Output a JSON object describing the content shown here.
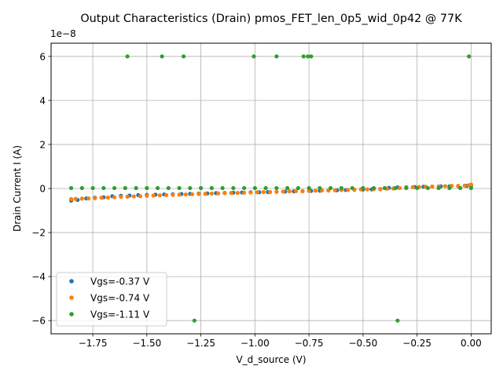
{
  "chart_data": {
    "type": "scatter",
    "title": "Output Characteristics (Drain) pmos_FET_len_0p5_wid_0p42 @ 77K",
    "xlabel": "V_d_source (V)",
    "ylabel": "Drain Current I (A)",
    "y_offset_text": "1e−8",
    "y_scale": 1e-08,
    "xlim": [
      -1.943,
      0.093
    ],
    "ylim": [
      -6.6,
      6.6
    ],
    "x_ticks": [
      -1.75,
      -1.5,
      -1.25,
      -1.0,
      -0.75,
      -0.5,
      -0.25,
      0.0
    ],
    "x_tick_labels": [
      "−1.75",
      "−1.50",
      "−1.25",
      "−1.00",
      "−0.75",
      "−0.50",
      "−0.25",
      "0.00"
    ],
    "y_ticks": [
      -6,
      -4,
      -2,
      0,
      2,
      4,
      6
    ],
    "y_tick_labels": [
      "−6",
      "−4",
      "−2",
      "0",
      "2",
      "4",
      "6"
    ],
    "grid": true,
    "legend_position": "lower-left",
    "series": [
      {
        "name": "Vgs=-0.37 V",
        "color": "#1f77b4",
        "x": [
          -1.85,
          -1.82,
          -1.78,
          -1.74,
          -1.7,
          -1.66,
          -1.62,
          -1.58,
          -1.54,
          -1.5,
          -1.46,
          -1.42,
          -1.38,
          -1.34,
          -1.3,
          -1.26,
          -1.22,
          -1.18,
          -1.14,
          -1.1,
          -1.06,
          -1.02,
          -0.98,
          -0.94,
          -0.9,
          -0.86,
          -0.82,
          -0.78,
          -0.74,
          -0.7,
          -0.66,
          -0.62,
          -0.58,
          -0.54,
          -0.5,
          -0.46,
          -0.42,
          -0.38,
          -0.34,
          -0.3,
          -0.26,
          -0.22,
          -0.18,
          -0.14,
          -0.1,
          -0.06,
          -0.02,
          0.0
        ],
        "y": [
          -0.55,
          -0.52,
          -0.45,
          -0.42,
          -0.4,
          -0.35,
          -0.33,
          -0.32,
          -0.3,
          -0.29,
          -0.28,
          -0.27,
          -0.26,
          -0.25,
          -0.24,
          -0.23,
          -0.22,
          -0.21,
          -0.2,
          -0.19,
          -0.18,
          -0.17,
          -0.17,
          -0.16,
          -0.15,
          -0.14,
          -0.13,
          -0.12,
          -0.11,
          -0.1,
          -0.09,
          -0.08,
          -0.07,
          -0.06,
          -0.05,
          -0.04,
          -0.03,
          0.03,
          0.05,
          0.06,
          0.07,
          0.08,
          0.09,
          0.1,
          0.1,
          0.11,
          0.12,
          0.13
        ]
      },
      {
        "name": "Vgs=-0.74 V",
        "color": "#ff7f0e",
        "x": [
          -1.85,
          -1.83,
          -1.8,
          -1.77,
          -1.74,
          -1.71,
          -1.68,
          -1.65,
          -1.62,
          -1.59,
          -1.56,
          -1.53,
          -1.5,
          -1.47,
          -1.44,
          -1.41,
          -1.38,
          -1.35,
          -1.32,
          -1.29,
          -1.26,
          -1.23,
          -1.2,
          -1.17,
          -1.14,
          -1.11,
          -1.08,
          -1.05,
          -1.02,
          -0.99,
          -0.96,
          -0.93,
          -0.9,
          -0.87,
          -0.84,
          -0.81,
          -0.78,
          -0.75,
          -0.72,
          -0.69,
          -0.66,
          -0.63,
          -0.6,
          -0.57,
          -0.54,
          -0.51,
          -0.48,
          -0.45,
          -0.42,
          -0.39,
          -0.36,
          -0.33,
          -0.3,
          -0.27,
          -0.24,
          -0.21,
          -0.18,
          -0.15,
          -0.12,
          -0.09,
          -0.06,
          -0.03,
          -0.01,
          0.0
        ],
        "y": [
          -0.48,
          -0.47,
          -0.46,
          -0.45,
          -0.44,
          -0.42,
          -0.41,
          -0.4,
          -0.38,
          -0.37,
          -0.36,
          -0.35,
          -0.33,
          -0.32,
          -0.31,
          -0.3,
          -0.29,
          -0.28,
          -0.27,
          -0.26,
          -0.25,
          -0.24,
          -0.23,
          -0.22,
          -0.21,
          -0.2,
          -0.2,
          -0.19,
          -0.18,
          -0.17,
          -0.16,
          -0.16,
          -0.15,
          -0.14,
          -0.13,
          -0.12,
          -0.12,
          -0.11,
          -0.1,
          -0.09,
          -0.08,
          -0.08,
          -0.07,
          -0.06,
          -0.05,
          -0.04,
          -0.04,
          -0.03,
          -0.02,
          -0.01,
          0.0,
          0.02,
          0.04,
          0.06,
          0.07,
          0.08,
          0.09,
          0.1,
          0.11,
          0.12,
          0.12,
          0.13,
          0.15,
          0.18
        ]
      },
      {
        "name": "Vgs=-1.11 V",
        "color": "#2ca02c",
        "x": [
          -1.85,
          -1.8,
          -1.75,
          -1.7,
          -1.65,
          -1.6,
          -1.55,
          -1.5,
          -1.45,
          -1.4,
          -1.35,
          -1.3,
          -1.25,
          -1.2,
          -1.15,
          -1.1,
          -1.05,
          -1.0,
          -0.95,
          -0.9,
          -0.85,
          -0.8,
          -0.75,
          -0.7,
          -0.65,
          -0.6,
          -0.55,
          -0.5,
          -0.45,
          -0.4,
          -0.35,
          -0.3,
          -0.25,
          -0.2,
          -0.15,
          -0.1,
          -0.05,
          0.0,
          -1.59,
          -1.43,
          -1.33,
          -1.005,
          -0.9,
          -0.775,
          -0.755,
          -0.74,
          -0.01,
          -1.28,
          -0.34
        ],
        "y": [
          0.02,
          0.02,
          0.02,
          0.02,
          0.02,
          0.02,
          0.02,
          0.02,
          0.02,
          0.02,
          0.02,
          0.02,
          0.02,
          0.02,
          0.02,
          0.02,
          0.02,
          0.02,
          0.02,
          0.02,
          0.02,
          0.02,
          0.02,
          0.02,
          0.02,
          0.02,
          0.02,
          0.02,
          0.02,
          0.02,
          0.02,
          0.02,
          0.02,
          0.02,
          0.02,
          0.02,
          0.02,
          0.02,
          6,
          6,
          6,
          6,
          6,
          6,
          6,
          6,
          6,
          -6,
          -6
        ]
      }
    ]
  }
}
